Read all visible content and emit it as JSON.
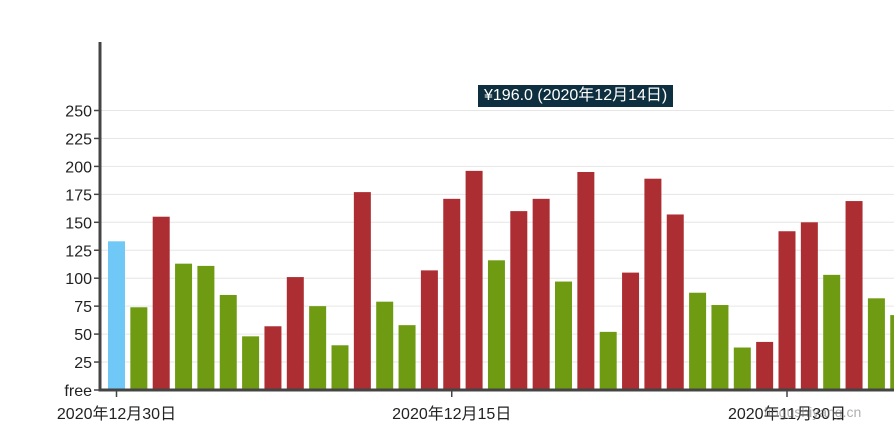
{
  "chart_data": {
    "type": "bar",
    "title": "",
    "xlabel": "",
    "ylabel": "",
    "ylim": [
      0,
      260
    ],
    "y_ticks": [
      {
        "value": 250,
        "label": "250"
      },
      {
        "value": 225,
        "label": "225"
      },
      {
        "value": 200,
        "label": "200"
      },
      {
        "value": 175,
        "label": "175"
      },
      {
        "value": 150,
        "label": "150"
      },
      {
        "value": 125,
        "label": "125"
      },
      {
        "value": 100,
        "label": "100"
      },
      {
        "value": 75,
        "label": "75"
      },
      {
        "value": 50,
        "label": "50"
      },
      {
        "value": 25,
        "label": "25"
      },
      {
        "value": 0,
        "label": "free"
      }
    ],
    "x_ticks": [
      {
        "index": 0,
        "label": "2020年12月30日"
      },
      {
        "index": 15,
        "label": "2020年12月15日"
      },
      {
        "index": 30,
        "label": "2020年11月30日"
      }
    ],
    "grid": true,
    "values": [
      133,
      74,
      155,
      113,
      111,
      85,
      48,
      57,
      101,
      75,
      40,
      177,
      79,
      58,
      107,
      171,
      196,
      116,
      160,
      171,
      97,
      195,
      52,
      105,
      189,
      157,
      87,
      76,
      38,
      43,
      142,
      150,
      103,
      169,
      82,
      67
    ],
    "bar_colors": [
      "#6fc8f5",
      "#6f9b12",
      "#ad2e32",
      "#6f9b12",
      "#6f9b12",
      "#6f9b12",
      "#6f9b12",
      "#ad2e32",
      "#ad2e32",
      "#6f9b12",
      "#6f9b12",
      "#ad2e32",
      "#6f9b12",
      "#6f9b12",
      "#ad2e32",
      "#ad2e32",
      "#ad2e32",
      "#6f9b12",
      "#ad2e32",
      "#ad2e32",
      "#6f9b12",
      "#ad2e32",
      "#6f9b12",
      "#ad2e32",
      "#ad2e32",
      "#ad2e32",
      "#6f9b12",
      "#6f9b12",
      "#6f9b12",
      "#ad2e32",
      "#ad2e32",
      "#ad2e32",
      "#6f9b12",
      "#ad2e32",
      "#6f9b12",
      "#6f9b12"
    ],
    "tooltip": "¥196.0 (2020年12月14日)",
    "colors": {
      "highlight": "#6fc8f5",
      "decrease": "#6f9b12",
      "increase": "#ad2e32",
      "axis": "#444444",
      "grid": "#e6e6e6",
      "tooltip_bg": "#0d2f3f"
    }
  },
  "watermark": "fiogushiyang.cn"
}
